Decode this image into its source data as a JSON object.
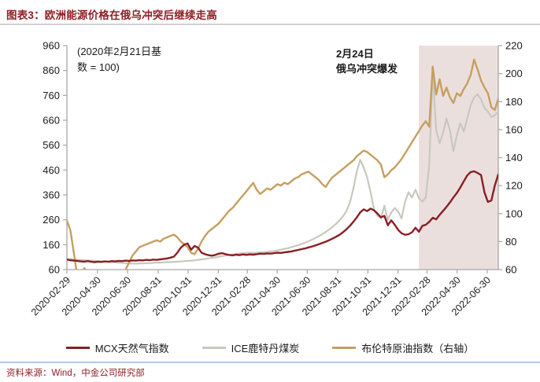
{
  "title": "图表3：欧洲能源价格在俄乌冲突后继续走高",
  "source": "资料来源：Wind，中金公司研究部",
  "chart_data": {
    "type": "line",
    "title": "欧洲能源价格在俄乌冲突后继续走高",
    "x_unit": "weeks since 2020-02-29",
    "x_weeks_total": 125,
    "x_ticklabels": [
      "2020-02-29",
      "2020-04-30",
      "2020-06-30",
      "2020-08-31",
      "2020-10-31",
      "2020-12-31",
      "2021-02-28",
      "2021-04-30",
      "2021-06-30",
      "2021-08-31",
      "2021-10-31",
      "2021-12-31",
      "2022-02-28",
      "2022-04-30",
      "2022-06-30"
    ],
    "x_tick_weeks": [
      0,
      8.86,
      17.57,
      26.43,
      35.14,
      43.86,
      52.29,
      60.93,
      69.64,
      78.5,
      87.21,
      95.93,
      104.36,
      113.07,
      121.79
    ],
    "left_axis": {
      "min": 60,
      "max": 960,
      "ticks": [
        60,
        160,
        260,
        360,
        460,
        560,
        660,
        760,
        860,
        960
      ]
    },
    "right_axis": {
      "min": 60,
      "max": 220,
      "ticks": [
        60,
        80,
        100,
        120,
        140,
        160,
        180,
        200,
        220
      ]
    },
    "grid": false,
    "legend_position": "bottom",
    "annotations": {
      "base_note": "(2020年2月21日基数 = 100)",
      "event_note": "2月24日\n俄乌冲突爆发"
    },
    "shaded_region": {
      "start_week": 102,
      "end_week": 125,
      "color": "#ebdfde",
      "meaning": "俄乌冲突爆发后时期"
    },
    "series": [
      {
        "id": "mcx-natural-gas",
        "name": "MCX天然气指数",
        "axis": "left",
        "color": "#8b1e23",
        "values": [
          100,
          98,
          96,
          95,
          93,
          92,
          94,
          92,
          90,
          92,
          91,
          93,
          92,
          94,
          93,
          95,
          94,
          96,
          95,
          97,
          96,
          98,
          97,
          99,
          98,
          100,
          99,
          101,
          103,
          105,
          108,
          112,
          128,
          148,
          160,
          165,
          140,
          155,
          148,
          128,
          122,
          118,
          116,
          119,
          124,
          126,
          122,
          119,
          117,
          120,
          118,
          121,
          119,
          121,
          120,
          122,
          124,
          123,
          125,
          124,
          126,
          128,
          127,
          129,
          131,
          133,
          136,
          139,
          142,
          145,
          149,
          153,
          157,
          162,
          167,
          172,
          178,
          185,
          192,
          200,
          210,
          222,
          236,
          252,
          270,
          290,
          302,
          295,
          305,
          298,
          285,
          270,
          276,
          238,
          258,
          240,
          219,
          206,
          200,
          202,
          210,
          228,
          212,
          236,
          240,
          252,
          268,
          262,
          280,
          296,
          312,
          330,
          350,
          368,
          390,
          415,
          438,
          452,
          455,
          448,
          440,
          370,
          332,
          338,
          398,
          442
        ]
      },
      {
        "id": "ice-rotterdam-coal",
        "name": "ICE鹿特丹煤炭",
        "axis": "left",
        "color": "#c7c8be",
        "values": [
          103,
          102,
          101,
          100,
          99,
          98,
          97,
          96,
          95,
          94,
          93,
          92,
          91,
          90,
          89,
          88,
          87,
          86,
          85,
          84,
          84,
          85,
          85,
          86,
          86,
          87,
          88,
          88,
          89,
          90,
          90,
          91,
          92,
          93,
          94,
          95,
          96,
          97,
          99,
          101,
          103,
          105,
          107,
          109,
          112,
          114,
          117,
          119,
          121,
          123,
          125,
          126,
          127,
          128,
          127,
          128,
          129,
          130,
          131,
          133,
          135,
          137,
          140,
          143,
          146,
          150,
          154,
          158,
          163,
          168,
          174,
          180,
          187,
          194,
          202,
          211,
          221,
          232,
          244,
          258,
          274,
          295,
          330,
          385,
          455,
          501,
          470,
          430,
          370,
          301,
          276,
          266,
          317,
          260,
          290,
          308,
          292,
          266,
          333,
          371,
          349,
          381,
          346,
          333,
          350,
          480,
          855,
          620,
          568,
          610,
          667,
          620,
          536,
          600,
          648,
          615,
          667,
          720,
          752,
          765,
          743,
          710,
          695,
          673,
          680,
          695
        ]
      },
      {
        "id": "brent-crude",
        "name": "布伦特原油指数（右轴）",
        "axis": "right",
        "color": "#c69f5e",
        "values": [
          95,
          88,
          72,
          55,
          50,
          61,
          58,
          48,
          42,
          45,
          50,
          53,
          55,
          56,
          57,
          57,
          58,
          60,
          65,
          70,
          73,
          76,
          77,
          78,
          79,
          80,
          81,
          80,
          82,
          83,
          84,
          85,
          83,
          80,
          78,
          76,
          72,
          71,
          75,
          80,
          84,
          87,
          89,
          91,
          93,
          96,
          99,
          102,
          104,
          107,
          110,
          113,
          116,
          119,
          122,
          117,
          114,
          116,
          118,
          117,
          119,
          121,
          120,
          122,
          121,
          123,
          125,
          126,
          128,
          129,
          130,
          128,
          126,
          124,
          121,
          119,
          123,
          126,
          128,
          130,
          132,
          134,
          136,
          138,
          141,
          143,
          145,
          144,
          142,
          140,
          138,
          135,
          126,
          128,
          131,
          133,
          136,
          139,
          143,
          147,
          151,
          155,
          159,
          163,
          166,
          162,
          205,
          185,
          196,
          184,
          190,
          183,
          179,
          186,
          184,
          189,
          193,
          199,
          210,
          203,
          195,
          190,
          186,
          176,
          174,
          182
        ]
      }
    ]
  }
}
